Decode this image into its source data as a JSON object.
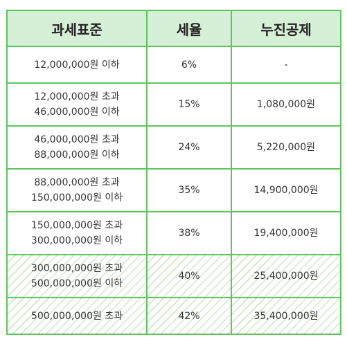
{
  "table": {
    "headers": {
      "base": "과세표준",
      "rate": "세율",
      "deduction": "누진공제"
    },
    "rows": [
      {
        "base": [
          "12,000,000원 이하"
        ],
        "rate": "6%",
        "deduction": "-"
      },
      {
        "base": [
          "12,000,000원 초과",
          "46,000,000원 이하"
        ],
        "rate": "15%",
        "deduction": "1,080,000원"
      },
      {
        "base": [
          "46,000,000원 초과",
          "88,000,000원 이하"
        ],
        "rate": "24%",
        "deduction": "5,220,000원"
      },
      {
        "base": [
          "88,000,000원 초과",
          "150,000,000원 이하"
        ],
        "rate": "35%",
        "deduction": "14,900,000원"
      },
      {
        "base": [
          "150,000,000원 초과",
          "300,000,000원 이하"
        ],
        "rate": "38%",
        "deduction": "19,400,000원"
      },
      {
        "base": [
          "300,000,000원 초과",
          "500,000,000원 이하"
        ],
        "rate": "40%",
        "deduction": "25,400,000원"
      },
      {
        "base": [
          "500,000,000원 초과"
        ],
        "rate": "42%",
        "deduction": "35,400,000원"
      }
    ]
  },
  "colors": {
    "border": "#5cc55c",
    "header_background": "#d6efd7",
    "hatch": "#cfe8c8"
  }
}
